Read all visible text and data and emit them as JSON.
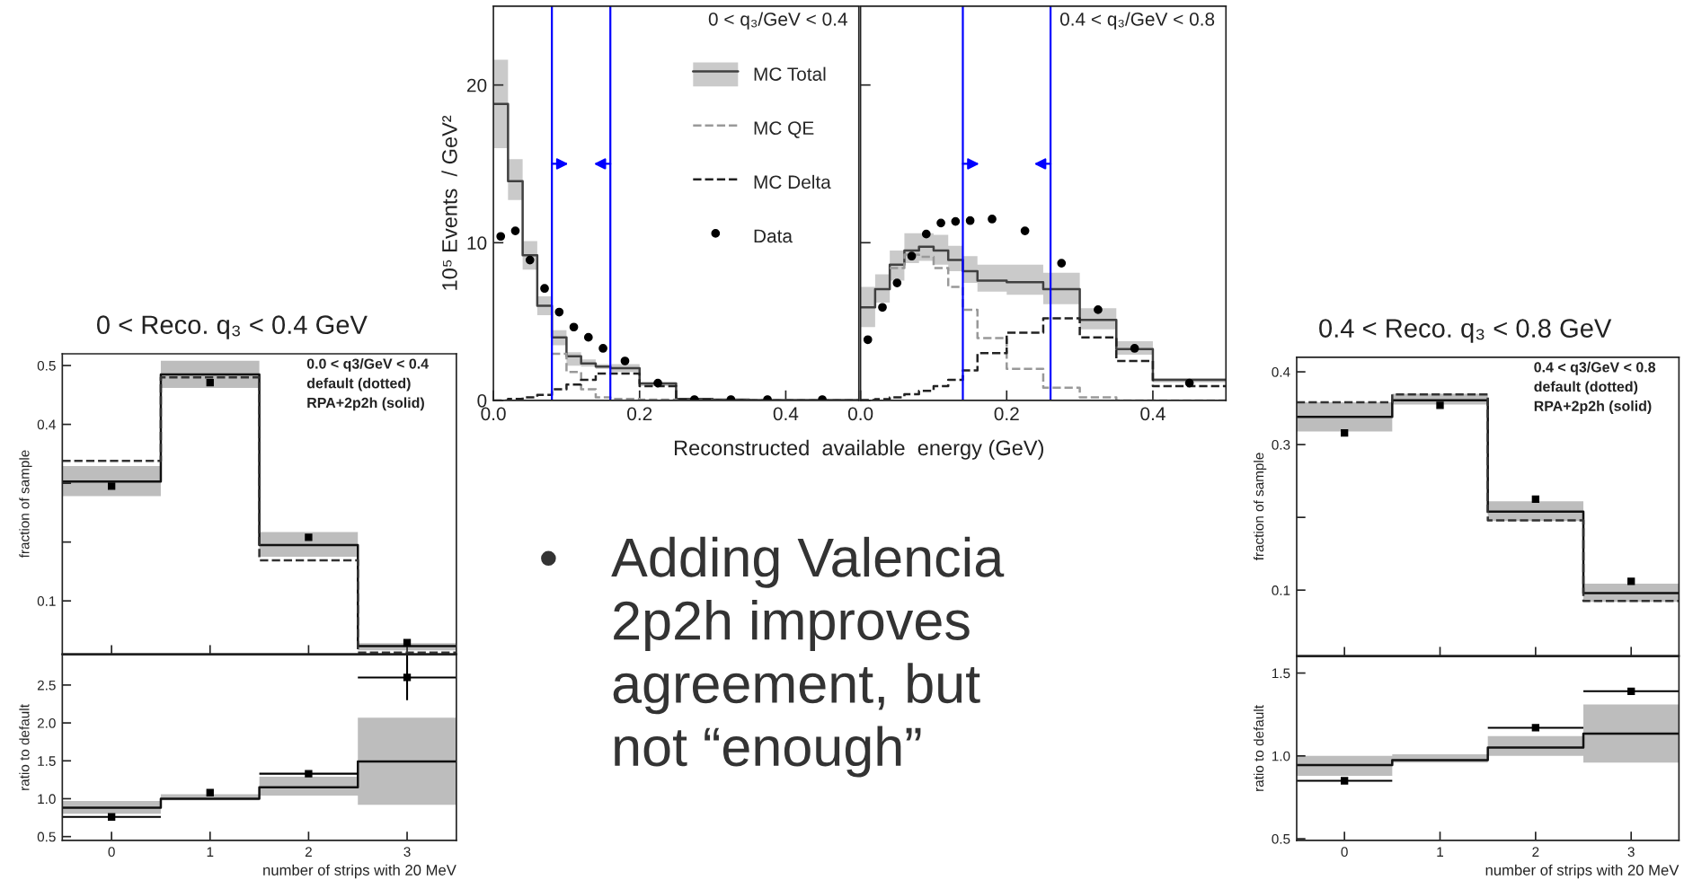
{
  "chart_data": [
    {
      "type": "step",
      "xlabel": "Reconstructed  available  energy (GeV)",
      "ylabel": "10⁵ Events  / GeV²",
      "annotations": [
        "0 < q₃/GeV < 0.4"
      ],
      "x": [
        0,
        0.02,
        0.04,
        0.06,
        0.08,
        0.1,
        0.12,
        0.14,
        0.16,
        0.2,
        0.25,
        0.3,
        0.35,
        0.4,
        0.5
      ],
      "xlim": [
        0,
        0.5
      ],
      "xticks": [
        {
          "value": 0,
          "label": "0.0"
        },
        0.2,
        0.4
      ],
      "ylim": [
        0,
        25
      ],
      "yticks": [
        0,
        10,
        20
      ],
      "legend": "top right",
      "series": [
        {
          "name": "MC Total",
          "color": "#404040",
          "values": [
            18.8,
            13.9,
            9.2,
            6.0,
            4.0,
            2.8,
            2.35,
            2.15,
            2.05,
            1.07,
            0.1,
            0.05,
            0.02,
            0.02,
            0.02
          ],
          "lower": [
            16.0,
            12.7,
            8.3,
            5.4,
            3.5,
            2.2,
            2.15,
            2.0,
            1.8,
            0.9,
            0.05,
            0.02,
            0,
            0,
            0
          ],
          "upper": [
            21.6,
            15.3,
            10.1,
            6.6,
            4.45,
            3.05,
            2.6,
            2.3,
            2.3,
            1.15,
            0.15,
            0.08,
            0.04,
            0.04,
            0.04
          ]
        },
        {
          "name": "MC QE",
          "color": "#999999",
          "line_style": "dashed",
          "values": [
            null,
            null,
            null,
            null,
            2.95,
            1.8,
            0.7,
            0.2,
            0.1,
            0.05,
            0,
            0,
            0,
            0,
            0
          ]
        },
        {
          "name": "MC Delta",
          "color": "#222222",
          "line_style": "dashed",
          "values": [
            0,
            0.1,
            0.2,
            0.35,
            0.7,
            1.0,
            1.3,
            1.7,
            1.7,
            0.9,
            0.05,
            0,
            0,
            0,
            0
          ]
        },
        {
          "name": "Data",
          "type": "scatter",
          "marker": "circle",
          "color": "#000000",
          "x": [
            0.01,
            0.03,
            0.05,
            0.07,
            0.09,
            0.11,
            0.13,
            0.15,
            0.18,
            0.225,
            0.275,
            0.325,
            0.375,
            0.45
          ],
          "values": [
            10.4,
            10.75,
            8.9,
            7.1,
            5.6,
            4.65,
            4.0,
            3.3,
            2.5,
            1.1,
            0.05,
            0.05,
            0.05,
            0.05
          ]
        }
      ],
      "ref_lines": [
        {
          "axis": "x",
          "value": 0.08,
          "color": "#0000ff"
        },
        {
          "axis": "x",
          "value": 0.16,
          "color": "#0000ff"
        }
      ]
    },
    {
      "type": "step",
      "annotations": [
        "0.4 < q₃/GeV < 0.8"
      ],
      "x": [
        0,
        0.02,
        0.04,
        0.06,
        0.08,
        0.1,
        0.12,
        0.14,
        0.16,
        0.2,
        0.25,
        0.3,
        0.35,
        0.4,
        0.5
      ],
      "xlim": [
        0,
        0.5
      ],
      "xticks": [
        {
          "value": 0,
          "label": "0.0"
        },
        0.2,
        0.4
      ],
      "ylim": [
        0,
        25
      ],
      "yticks": [
        0,
        10,
        20
      ],
      "tick_labels": "x",
      "series": [
        {
          "color": "#404040",
          "values": [
            5.9,
            7.05,
            8.6,
            9.5,
            9.75,
            9.5,
            8.9,
            8.2,
            7.6,
            7.5,
            7.05,
            5.1,
            3.25,
            1.3,
            1.3
          ],
          "lower": [
            4.65,
            6.2,
            7.6,
            8.7,
            8.85,
            8.6,
            8.2,
            7.45,
            6.9,
            6.7,
            6.1,
            4.5,
            2.9,
            1.15,
            1.15
          ],
          "upper": [
            7.2,
            8.0,
            9.5,
            10.6,
            10.6,
            10.5,
            9.8,
            9.15,
            8.6,
            8.6,
            8.1,
            5.85,
            3.75,
            1.4,
            1.4
          ]
        },
        {
          "color": "#999999",
          "line_style": "dashed",
          "values": [
            null,
            null,
            8.4,
            9.25,
            9.1,
            8.4,
            7.2,
            5.75,
            3.95,
            2.0,
            0.8,
            0.2,
            0,
            0,
            0
          ]
        },
        {
          "color": "#222222",
          "line_style": "dashed",
          "values": [
            0.02,
            0.08,
            0.2,
            0.4,
            0.6,
            0.9,
            1.3,
            1.9,
            3.0,
            4.3,
            5.2,
            4.0,
            2.5,
            0.9,
            0.9
          ]
        },
        {
          "type": "scatter",
          "marker": "circle",
          "color": "#000000",
          "x": [
            0.01,
            0.03,
            0.05,
            0.07,
            0.09,
            0.11,
            0.13,
            0.15,
            0.18,
            0.225,
            0.275,
            0.325,
            0.375,
            0.45
          ],
          "values": [
            3.85,
            5.9,
            7.45,
            9.15,
            10.55,
            11.25,
            11.35,
            11.4,
            11.5,
            10.75,
            8.7,
            5.75,
            3.3,
            1.1
          ]
        }
      ],
      "ref_lines": [
        {
          "axis": "x",
          "value": 0.14,
          "color": "#0000ff"
        },
        {
          "axis": "x",
          "value": 0.26,
          "color": "#0000ff"
        }
      ]
    },
    {
      "type": "step",
      "title": "0 < Reco. q₃ < 0.4 GeV",
      "ylabel": "fraction of sample",
      "annotations": [
        "0.0 < q3/GeV < 0.4",
        "default (dotted)",
        "RPA+2p2h (solid)"
      ],
      "x": [
        -0.5,
        0.5,
        1.5,
        2.5,
        3.5
      ],
      "xlim": [
        -0.5,
        3.5
      ],
      "xticks": [
        0,
        1,
        2,
        3
      ],
      "ylim": [
        0.01,
        0.52
      ],
      "yticks": [
        0.1,
        {
          "value": 0.2,
          "label": null
        },
        {
          "value": 0.3,
          "label": null
        },
        0.4,
        0.5
      ],
      "tick_labels": "y",
      "series": [
        {
          "color": "#111111",
          "values": [
            0.303,
            0.485,
            0.195,
            0.023,
            0.023
          ],
          "lower": [
            0.278,
            0.462,
            0.175,
            0.016,
            0.016
          ],
          "upper": [
            0.329,
            0.508,
            0.217,
            0.028,
            0.028
          ]
        },
        {
          "color": "#333333",
          "line_style": "dashed",
          "values": [
            0.338,
            0.48,
            0.169,
            0.012,
            0.012
          ]
        },
        {
          "type": "scatter",
          "marker": "square",
          "color": "#000000",
          "x": [
            0,
            1,
            2,
            3
          ],
          "values": [
            0.295,
            0.471,
            0.208,
            0.029
          ]
        }
      ]
    },
    {
      "type": "step",
      "xlabel": "number of strips with 20 MeV",
      "ylabel": "ratio to default",
      "x": [
        -0.5,
        0.5,
        1.5,
        2.5,
        3.5
      ],
      "xlim": [
        -0.5,
        3.5
      ],
      "xticks": [
        0,
        1,
        2,
        3
      ],
      "ylim": [
        0.45,
        2.9
      ],
      "yticks": [
        0.5,
        {
          "value": 1,
          "label": "1.0"
        },
        1.5,
        {
          "value": 2,
          "label": "2.0"
        },
        2.5
      ],
      "series": [
        {
          "color": "#111111",
          "values": [
            0.88,
            1.0,
            1.15,
            1.49,
            1.49
          ],
          "lower": [
            0.8,
            0.98,
            1.04,
            0.92,
            0.92
          ],
          "upper": [
            0.97,
            1.06,
            1.29,
            2.07,
            2.07
          ]
        },
        {
          "type": "scatter",
          "marker": "square",
          "color": "#000000",
          "x": [
            0,
            1,
            2,
            3
          ],
          "values": [
            0.76,
            1.08,
            1.33,
            2.6
          ],
          "errors": [
            null,
            null,
            null,
            0.3
          ],
          "xerrors": [
            0.5,
            null,
            0.5,
            0.5
          ]
        }
      ]
    },
    {
      "type": "step",
      "title": "0.4 < Reco. q₃ < 0.8 GeV",
      "ylabel": "fraction of sample",
      "annotations": [
        "0.4 < q3/GeV < 0.8",
        "default (dotted)",
        "RPA+2p2h (solid)"
      ],
      "x": [
        -0.5,
        0.5,
        1.5,
        2.5,
        3.5
      ],
      "xlim": [
        -0.5,
        3.5
      ],
      "xticks": [
        0,
        1,
        2,
        3
      ],
      "ylim": [
        0.01,
        0.42
      ],
      "yticks": [
        0.1,
        {
          "value": 0.2,
          "label": null
        },
        0.3,
        0.4
      ],
      "tick_labels": "y",
      "series": [
        {
          "color": "#111111",
          "values": [
            0.338,
            0.361,
            0.208,
            0.096,
            0.096
          ],
          "lower": [
            0.318,
            0.355,
            0.195,
            0.084,
            0.084
          ],
          "upper": [
            0.358,
            0.37,
            0.222,
            0.109,
            0.109
          ]
        },
        {
          "color": "#333333",
          "line_style": "dashed",
          "values": [
            0.358,
            0.369,
            0.196,
            0.085,
            0.085
          ]
        },
        {
          "type": "scatter",
          "marker": "square",
          "color": "#000000",
          "x": [
            0,
            1,
            2,
            3
          ],
          "values": [
            0.316,
            0.354,
            0.225,
            0.112
          ]
        }
      ]
    },
    {
      "type": "step",
      "xlabel": "number of strips with 20 MeV",
      "ylabel": "ratio to default",
      "x": [
        -0.5,
        0.5,
        1.5,
        2.5,
        3.5
      ],
      "xlim": [
        -0.5,
        3.5
      ],
      "xticks": [
        0,
        1,
        2,
        3
      ],
      "ylim": [
        0.49,
        1.6
      ],
      "yticks": [
        0.5,
        {
          "value": 1,
          "label": "1.0"
        },
        1.5
      ],
      "series": [
        {
          "color": "#111111",
          "values": [
            0.945,
            0.975,
            1.05,
            1.135,
            1.135
          ],
          "lower": [
            0.88,
            0.96,
            1.0,
            0.96,
            0.96
          ],
          "upper": [
            1.0,
            1.01,
            1.12,
            1.31,
            1.31
          ]
        },
        {
          "type": "scatter",
          "marker": "square",
          "color": "#000000",
          "x": [
            0,
            1,
            2,
            3
          ],
          "values": [
            0.85,
            null,
            1.17,
            1.39
          ],
          "xerrors": [
            0.5,
            null,
            0.5,
            0.5
          ]
        }
      ]
    },
    {
      "type": "other",
      "annotations": [
        "•",
        "Adding Valencia\n2p2h improves\nagreement, but\nnot “enough”"
      ]
    }
  ]
}
